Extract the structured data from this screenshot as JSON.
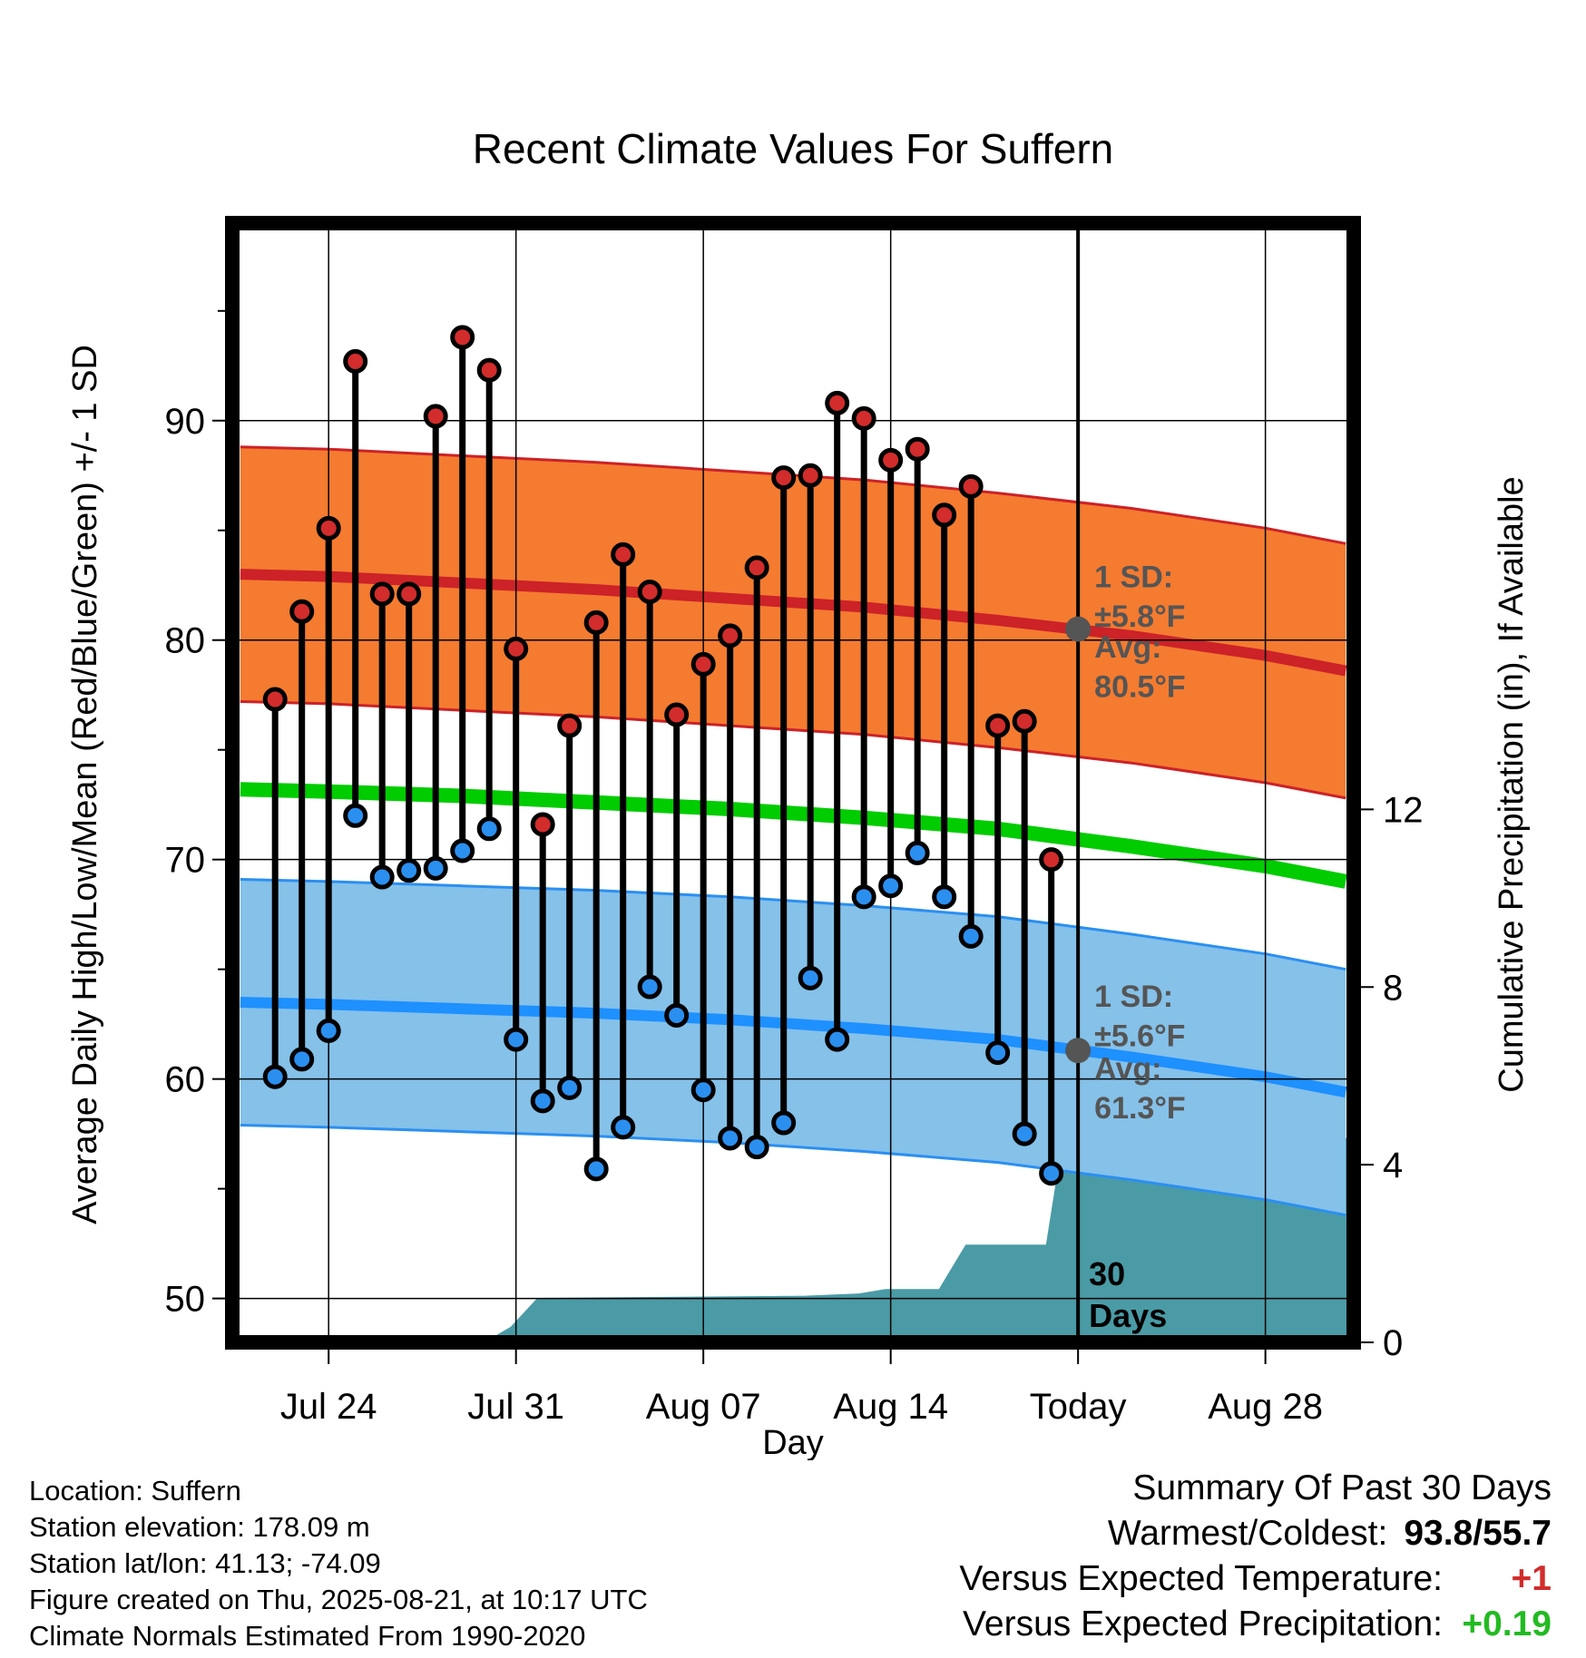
{
  "chart_data": {
    "type": "line",
    "title": "Recent Climate Values For Suffern",
    "xlabel": "Day",
    "ylabel": "Average Daily High/Low/Mean (Red/Blue/Green) +/- 1 SD",
    "y2label": "Cumulative Precipitation (in), If Available",
    "ylim": [
      48,
      99
    ],
    "y2lim": [
      0,
      25.2
    ],
    "y_ticks": [
      50,
      60,
      70,
      80,
      90
    ],
    "y_ticks_minor": [
      55,
      65,
      75,
      85,
      95
    ],
    "y2_ticks": [
      0,
      4,
      8,
      12
    ],
    "xlim": [
      -3.6,
      38.3
    ],
    "x_ticks": [
      {
        "day": 0,
        "label": "Jul 24"
      },
      {
        "day": 7,
        "label": "Jul 31"
      },
      {
        "day": 14,
        "label": "Aug 07"
      },
      {
        "day": 21,
        "label": "Aug 14"
      },
      {
        "day": 28,
        "label": "Today"
      },
      {
        "day": 35,
        "label": "Aug 28"
      }
    ],
    "today_day": 28,
    "grid": true,
    "daily": {
      "day": [
        -2,
        -1,
        0,
        1,
        2,
        3,
        4,
        5,
        6,
        7,
        8,
        9,
        10,
        11,
        12,
        13,
        14,
        15,
        16,
        17,
        18,
        19,
        20,
        21,
        22,
        23,
        24,
        25,
        26,
        27
      ],
      "high": [
        77.3,
        81.3,
        85.1,
        92.7,
        82.1,
        82.1,
        90.2,
        93.8,
        92.3,
        79.6,
        71.6,
        76.1,
        80.8,
        83.9,
        82.2,
        76.6,
        78.9,
        80.2,
        83.3,
        87.4,
        87.5,
        90.8,
        90.1,
        88.2,
        88.7,
        85.7,
        87.0,
        76.1,
        76.3,
        70.0
      ],
      "low": [
        60.1,
        60.9,
        62.2,
        72.0,
        69.2,
        69.5,
        69.6,
        70.4,
        71.4,
        61.8,
        59.0,
        59.6,
        55.9,
        57.8,
        64.2,
        62.9,
        59.5,
        57.3,
        56.9,
        58.0,
        64.6,
        61.8,
        68.3,
        68.8,
        70.3,
        68.3,
        66.5,
        61.2,
        57.5,
        55.7
      ]
    },
    "normals": {
      "day": [
        -3.3,
        0,
        5,
        10,
        15,
        20,
        25,
        30,
        35,
        38
      ],
      "high_avg": [
        83.0,
        82.9,
        82.6,
        82.3,
        81.9,
        81.5,
        80.9,
        80.2,
        79.3,
        78.6
      ],
      "low_avg": [
        63.5,
        63.4,
        63.2,
        63.0,
        62.7,
        62.3,
        61.8,
        61.0,
        60.1,
        59.4
      ],
      "mean_avg": [
        73.2,
        73.1,
        72.9,
        72.6,
        72.3,
        71.9,
        71.4,
        70.6,
        69.7,
        69.0
      ],
      "high_sd": 5.8,
      "low_sd": 5.6
    },
    "precip": {
      "day": [
        -3.3,
        2.8,
        3.8,
        5.8,
        6.8,
        7.8,
        17.8,
        19.8,
        20.8,
        21.8,
        22.8,
        23.8,
        24.8,
        25.8,
        26.8,
        27.3,
        28,
        38.3
      ],
      "cumulative": [
        0,
        0,
        0,
        0,
        0.35,
        1.0,
        1.05,
        1.1,
        1.2,
        1.2,
        1.2,
        2.2,
        2.2,
        2.2,
        2.2,
        4.1,
        4.6,
        4.6
      ]
    },
    "annotations": {
      "high_sd": "1 SD:",
      "high_sd_val": "±5.8°F",
      "high_avg_label": "Avg:",
      "high_avg_val": "80.5°F",
      "low_sd": "1 SD:",
      "low_sd_val": "±5.6°F",
      "low_avg_label": "Avg:",
      "low_avg_val": "61.3°F",
      "days_num": "30",
      "days_word": "Days",
      "high_marker": 80.5,
      "low_marker": 61.3
    },
    "colors": {
      "high_band": "#f47b30",
      "high_line": "#cc2228",
      "low_band": "#85c1e9",
      "low_line": "#1e90ff",
      "low_edge": "#2b8ff0",
      "mean_line": "#00cc00",
      "precip": "#4a9ba6",
      "high_dot": "#d22c2c",
      "low_dot": "#2b8ff0",
      "marker": "#555555"
    }
  },
  "footer": {
    "location": "Location: Suffern",
    "elevation": "Station elevation: 178.09 m",
    "latlon": "Station lat/lon: 41.13; -74.09",
    "created": "Figure created on Thu, 2025-08-21, at 10:17 UTC",
    "normals": "Climate Normals Estimated From 1990-2020"
  },
  "summary": {
    "title": "Summary Of Past 30 Days",
    "warm_cold_label": "Warmest/Coldest:",
    "warm_cold_value": "93.8/55.7",
    "temp_label": "Versus Expected Temperature:",
    "temp_value": "+1",
    "temp_color": "#d22c2c",
    "precip_label": "Versus Expected Precipitation:",
    "precip_value": "+0.19",
    "precip_color": "#22bb22"
  }
}
